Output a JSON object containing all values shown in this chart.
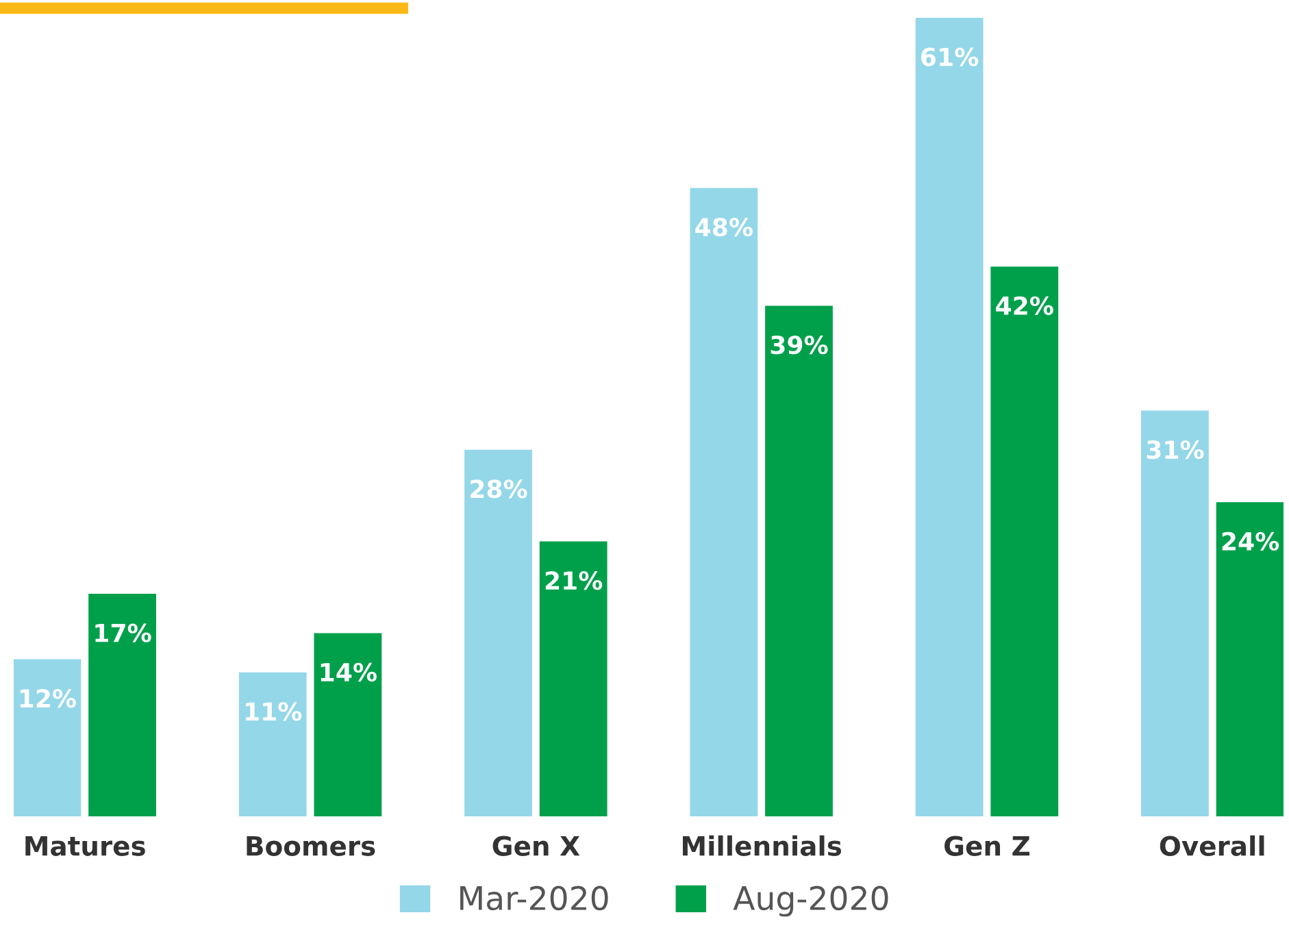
{
  "chart_data": {
    "type": "bar",
    "categories": [
      "Matures",
      "Boomers",
      "Gen X",
      "Millennials",
      "Gen Z",
      "Overall"
    ],
    "series": [
      {
        "name": "Mar-2020",
        "color": "#94d7e8",
        "values": [
          12,
          11,
          28,
          48,
          61,
          31
        ],
        "value_labels": [
          "12%",
          "11%",
          "28%",
          "48%",
          "61%",
          "31%"
        ]
      },
      {
        "name": "Aug-2020",
        "color": "#00a04b",
        "values": [
          17,
          14,
          21,
          39,
          42,
          24
        ],
        "value_labels": [
          "17%",
          "14%",
          "21%",
          "39%",
          "42%",
          "24%"
        ]
      }
    ],
    "tick_labels": "x",
    "grid": false,
    "legend": "bottom"
  }
}
